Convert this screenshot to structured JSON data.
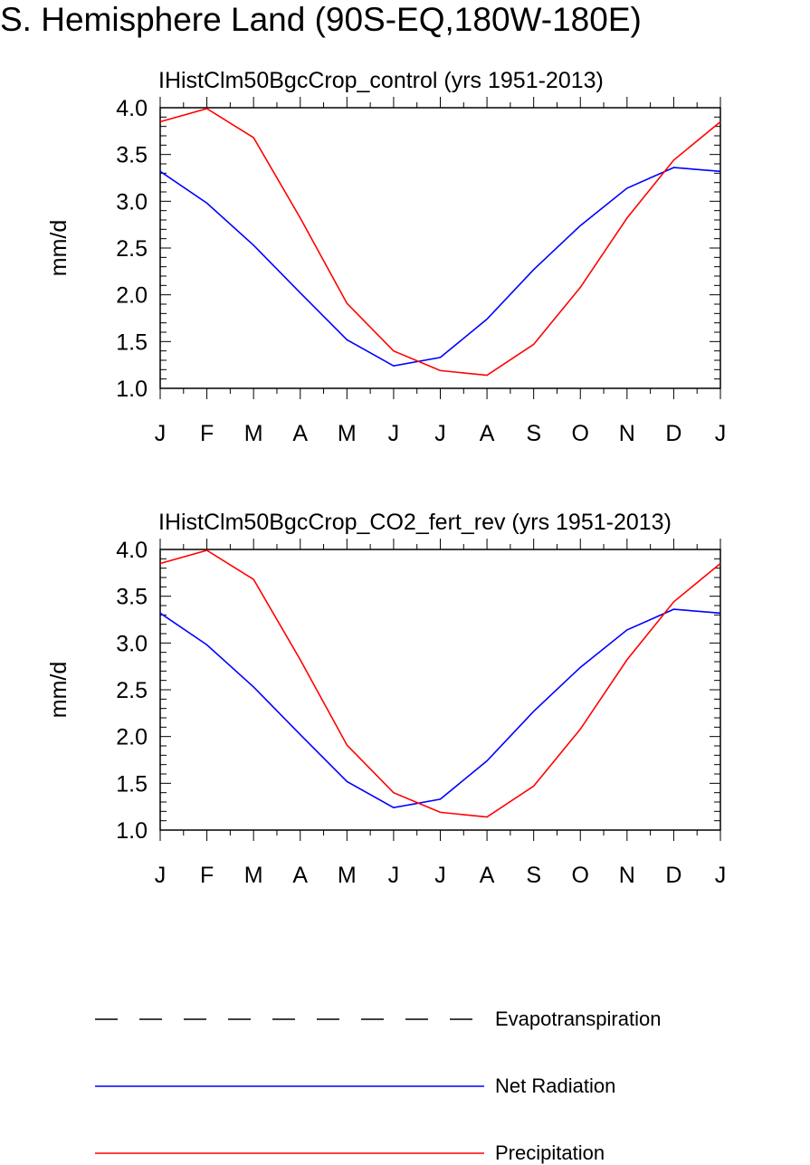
{
  "title": "S. Hemisphere Land (90S-EQ,180W-180E)",
  "chart_data": [
    {
      "type": "line",
      "title": "IHistClm50BgcCrop_control (yrs 1951-2013)",
      "ylabel": "mm/d",
      "xlabel": "",
      "ylim": [
        1.0,
        4.0
      ],
      "yticks": [
        "1.0",
        "1.5",
        "2.0",
        "2.5",
        "3.0",
        "3.5",
        "4.0"
      ],
      "categories": [
        "J",
        "F",
        "M",
        "A",
        "M",
        "J",
        "J",
        "A",
        "S",
        "O",
        "N",
        "D",
        "J"
      ],
      "series": [
        {
          "name": "Net Radiation",
          "color": "#0000ff",
          "values": [
            3.32,
            2.98,
            2.53,
            2.02,
            1.52,
            1.24,
            1.33,
            1.74,
            2.27,
            2.74,
            3.14,
            3.36,
            3.32
          ]
        },
        {
          "name": "Precipitation",
          "color": "#ff0000",
          "values": [
            3.85,
            3.99,
            3.68,
            2.82,
            1.91,
            1.4,
            1.19,
            1.14,
            1.47,
            2.08,
            2.82,
            3.44,
            3.85
          ]
        }
      ]
    },
    {
      "type": "line",
      "title": "IHistClm50BgcCrop_CO2_fert_rev (yrs 1951-2013)",
      "ylabel": "mm/d",
      "xlabel": "",
      "ylim": [
        1.0,
        4.0
      ],
      "yticks": [
        "1.0",
        "1.5",
        "2.0",
        "2.5",
        "3.0",
        "3.5",
        "4.0"
      ],
      "categories": [
        "J",
        "F",
        "M",
        "A",
        "M",
        "J",
        "J",
        "A",
        "S",
        "O",
        "N",
        "D",
        "J"
      ],
      "series": [
        {
          "name": "Net Radiation",
          "color": "#0000ff",
          "values": [
            3.32,
            2.98,
            2.53,
            2.02,
            1.52,
            1.24,
            1.33,
            1.74,
            2.27,
            2.74,
            3.14,
            3.36,
            3.32
          ]
        },
        {
          "name": "Precipitation",
          "color": "#ff0000",
          "values": [
            3.85,
            3.99,
            3.68,
            2.82,
            1.91,
            1.4,
            1.19,
            1.14,
            1.47,
            2.08,
            2.82,
            3.44,
            3.85
          ]
        }
      ]
    }
  ],
  "legend": [
    {
      "label": "Evapotranspiration",
      "style": "dashed",
      "color": "#000000"
    },
    {
      "label": "Net Radiation",
      "style": "solid",
      "color": "#0000ff"
    },
    {
      "label": "Precipitation",
      "style": "solid",
      "color": "#ff0000"
    }
  ]
}
